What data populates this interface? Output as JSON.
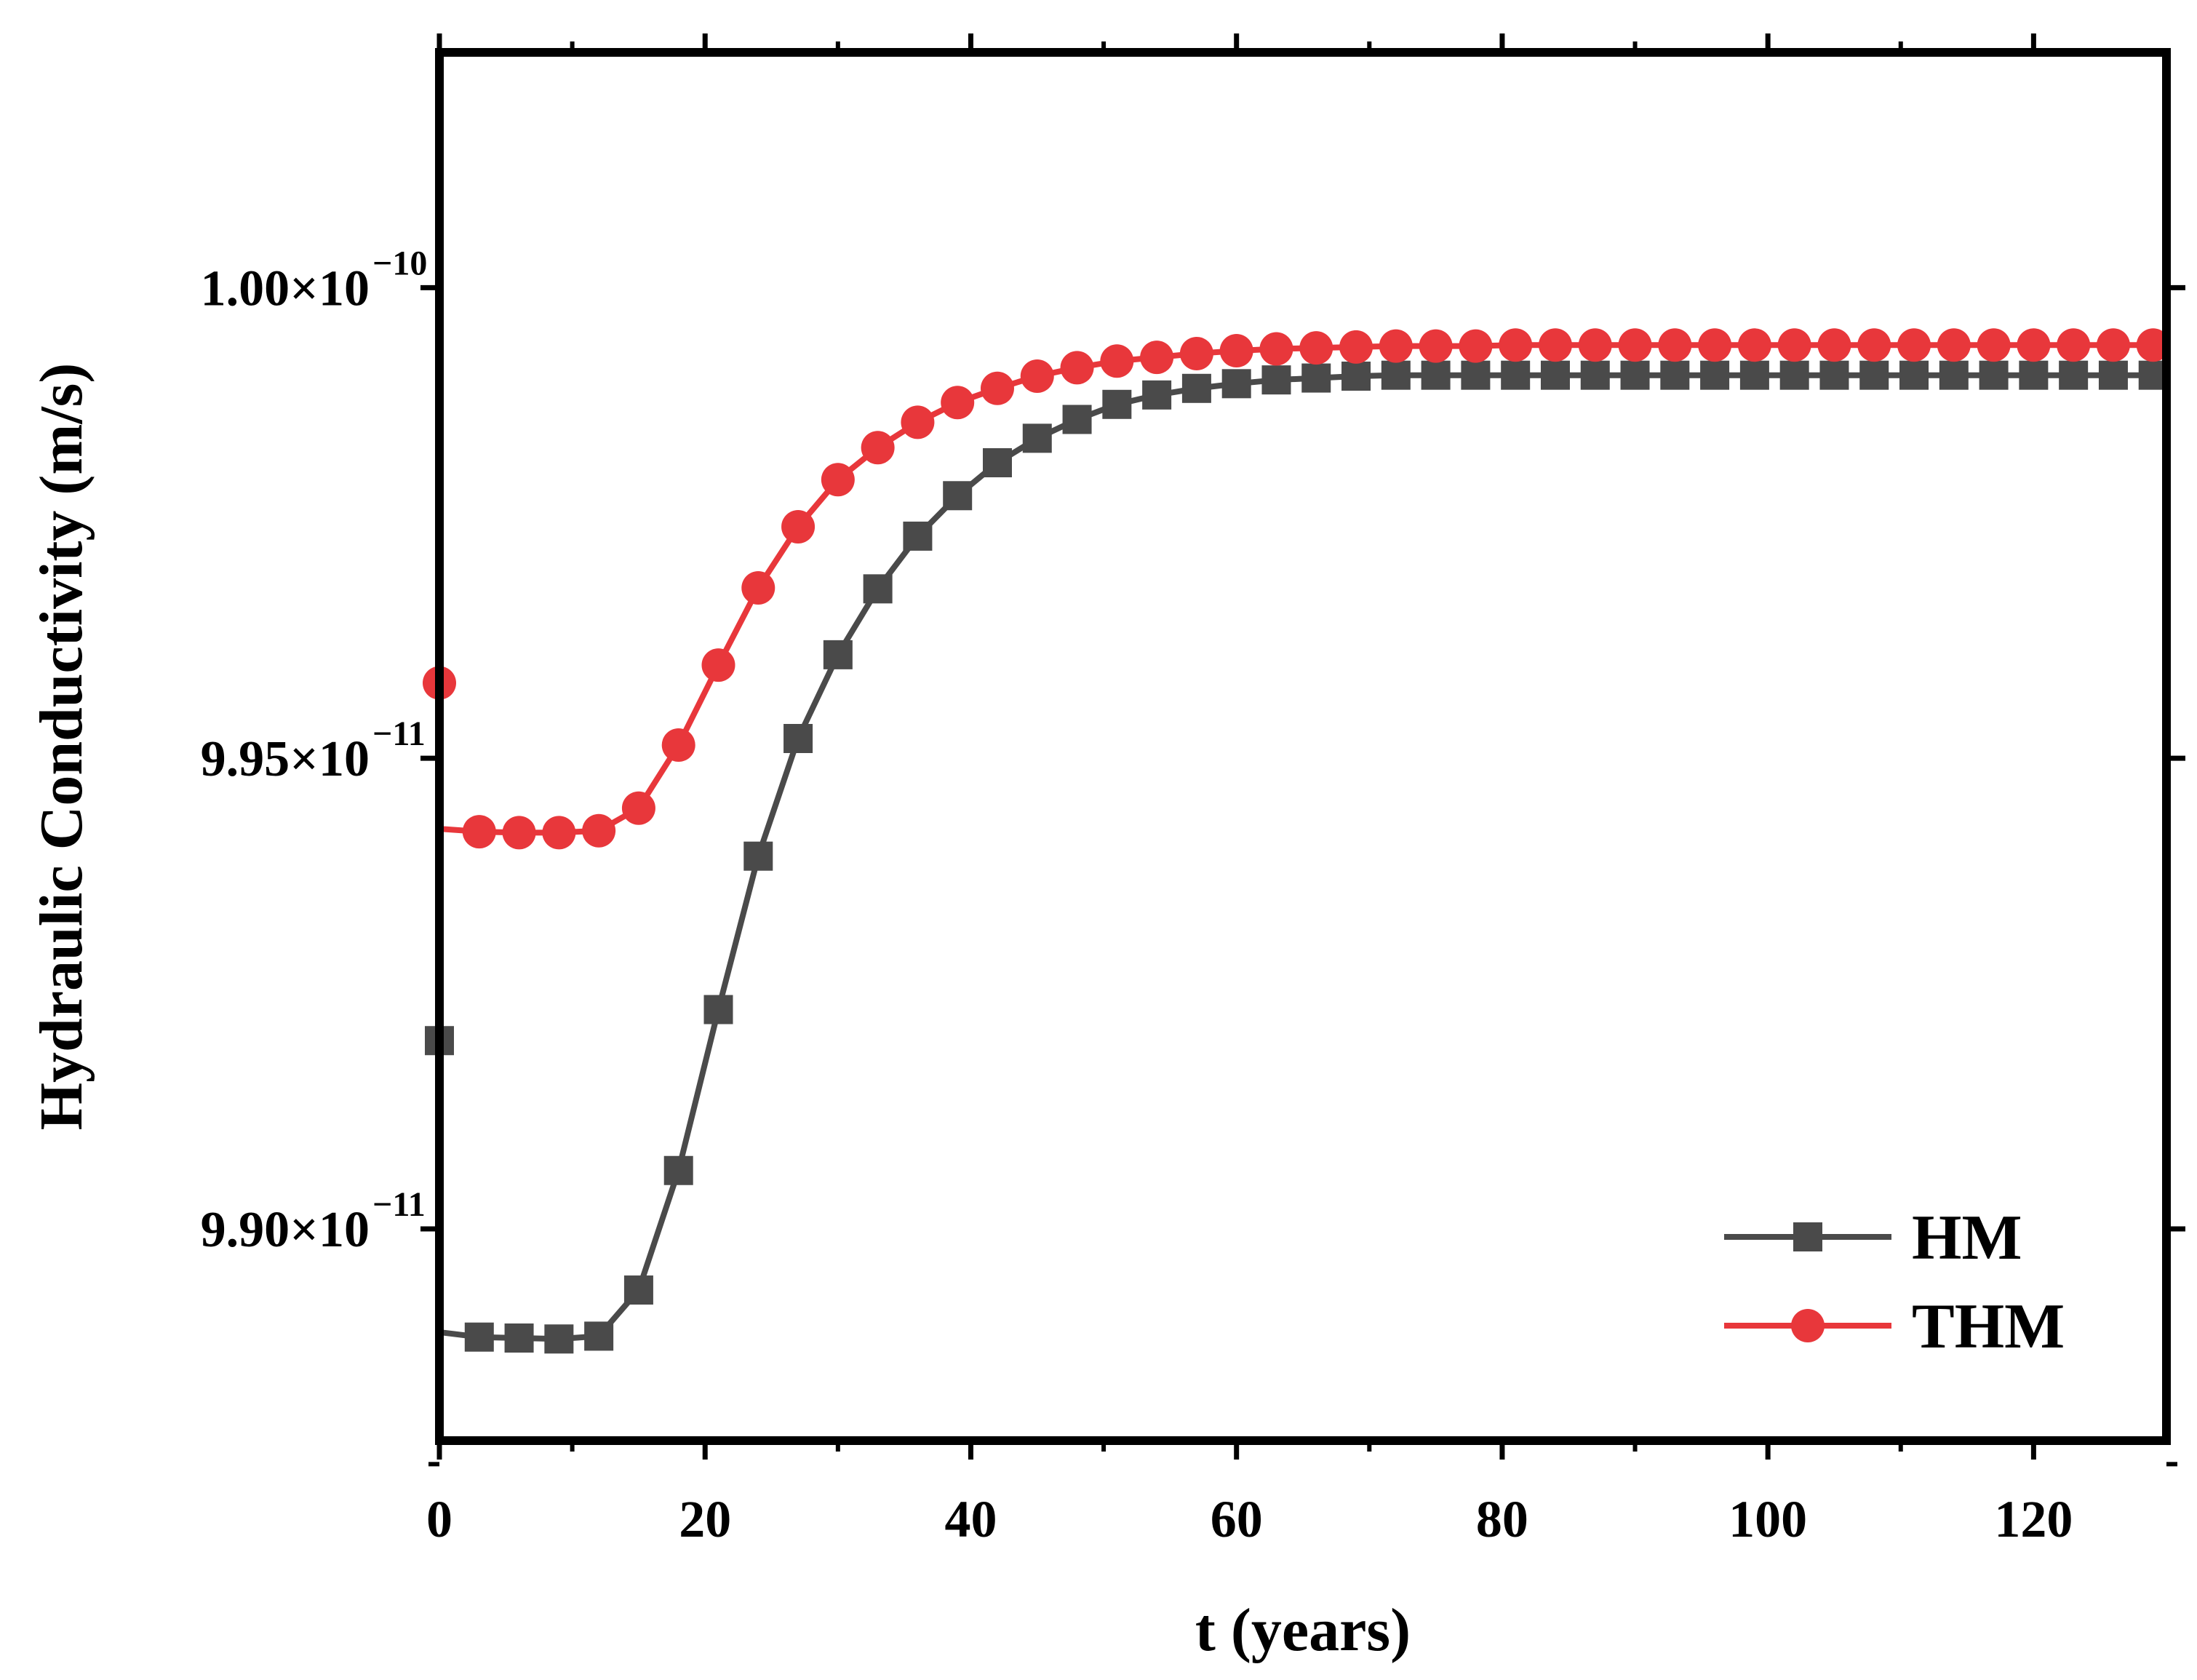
{
  "chart_data": {
    "type": "line",
    "title": "",
    "xlabel": "t (years)",
    "ylabel": "Hydraulic Conductivity (m/s)",
    "xlim": [
      0,
      130
    ],
    "ylim": [
      9.8775e-11,
      1.0025e-10
    ],
    "x_ticks": [
      0,
      20,
      40,
      60,
      80,
      100,
      120
    ],
    "x_tick_labels": [
      "0",
      "20",
      "40",
      "60",
      "80",
      "100",
      "120"
    ],
    "y_ticks": [
      {
        "value": 9.9e-11,
        "mantissa": "9.90×10",
        "exponent": "−11"
      },
      {
        "value": 9.95e-11,
        "mantissa": "9.95×10",
        "exponent": "−11"
      },
      {
        "value": 1e-10,
        "mantissa": "1.00×10",
        "exponent": "−10"
      }
    ],
    "legend_position": "bottom-right",
    "series": [
      {
        "name": "HM",
        "color": "#4a4a4a",
        "marker": "square",
        "initial_point": [
          0,
          9.92e-11
        ],
        "line_start": [
          0.1,
          9.889e-11
        ],
        "x": [
          3,
          6,
          9,
          12,
          15,
          18,
          21,
          24,
          27,
          30,
          33,
          36,
          39,
          42,
          45,
          48,
          51,
          54,
          57,
          60,
          63,
          66,
          69,
          72,
          75,
          78,
          81,
          84,
          87,
          90,
          93,
          96,
          99,
          102,
          105,
          108,
          111,
          114,
          117,
          120,
          123,
          126,
          129
        ],
        "values": [
          9.8885e-11,
          9.8884e-11,
          9.8883e-11,
          9.8886e-11,
          9.8935e-11,
          9.9062e-11,
          9.9233e-11,
          9.9396e-11,
          9.9521e-11,
          9.961e-11,
          9.968e-11,
          9.9736e-11,
          9.9779e-11,
          9.9814e-11,
          9.984e-11,
          9.986e-11,
          9.9876e-11,
          9.9886e-11,
          9.9893e-11,
          9.9898e-11,
          9.9902e-11,
          9.9904e-11,
          9.9906e-11,
          9.9907e-11,
          9.9907e-11,
          9.9907e-11,
          9.9907e-11,
          9.9907e-11,
          9.9907e-11,
          9.9907e-11,
          9.9907e-11,
          9.9907e-11,
          9.9907e-11,
          9.9907e-11,
          9.9907e-11,
          9.9907e-11,
          9.9907e-11,
          9.9907e-11,
          9.9907e-11,
          9.9907e-11,
          9.9907e-11,
          9.9907e-11,
          9.9907e-11
        ]
      },
      {
        "name": "THM",
        "color": "#e8373b",
        "marker": "circle",
        "initial_point": [
          0,
          9.958e-11
        ],
        "line_start": [
          0.1,
          9.9425e-11
        ],
        "x": [
          3,
          6,
          9,
          12,
          15,
          18,
          21,
          24,
          27,
          30,
          33,
          36,
          39,
          42,
          45,
          48,
          51,
          54,
          57,
          60,
          63,
          66,
          69,
          72,
          75,
          78,
          81,
          84,
          87,
          90,
          93,
          96,
          99,
          102,
          105,
          108,
          111,
          114,
          117,
          120,
          123,
          126,
          129
        ],
        "values": [
          9.9422e-11,
          9.9421e-11,
          9.9421e-11,
          9.9423e-11,
          9.9447e-11,
          9.9514e-11,
          9.9599e-11,
          9.9681e-11,
          9.9746e-11,
          9.9796e-11,
          9.983e-11,
          9.9857e-11,
          9.9878e-11,
          9.9893e-11,
          9.9906e-11,
          9.9915e-11,
          9.9922e-11,
          9.9926e-11,
          9.993e-11,
          9.9933e-11,
          9.9935e-11,
          9.9936e-11,
          9.9937e-11,
          9.9938e-11,
          9.9938e-11,
          9.9938e-11,
          9.9939e-11,
          9.9939e-11,
          9.9939e-11,
          9.9939e-11,
          9.9939e-11,
          9.9939e-11,
          9.9939e-11,
          9.9939e-11,
          9.9939e-11,
          9.9939e-11,
          9.9939e-11,
          9.9939e-11,
          9.9939e-11,
          9.9939e-11,
          9.9939e-11,
          9.9939e-11,
          9.9939e-11
        ]
      }
    ]
  }
}
